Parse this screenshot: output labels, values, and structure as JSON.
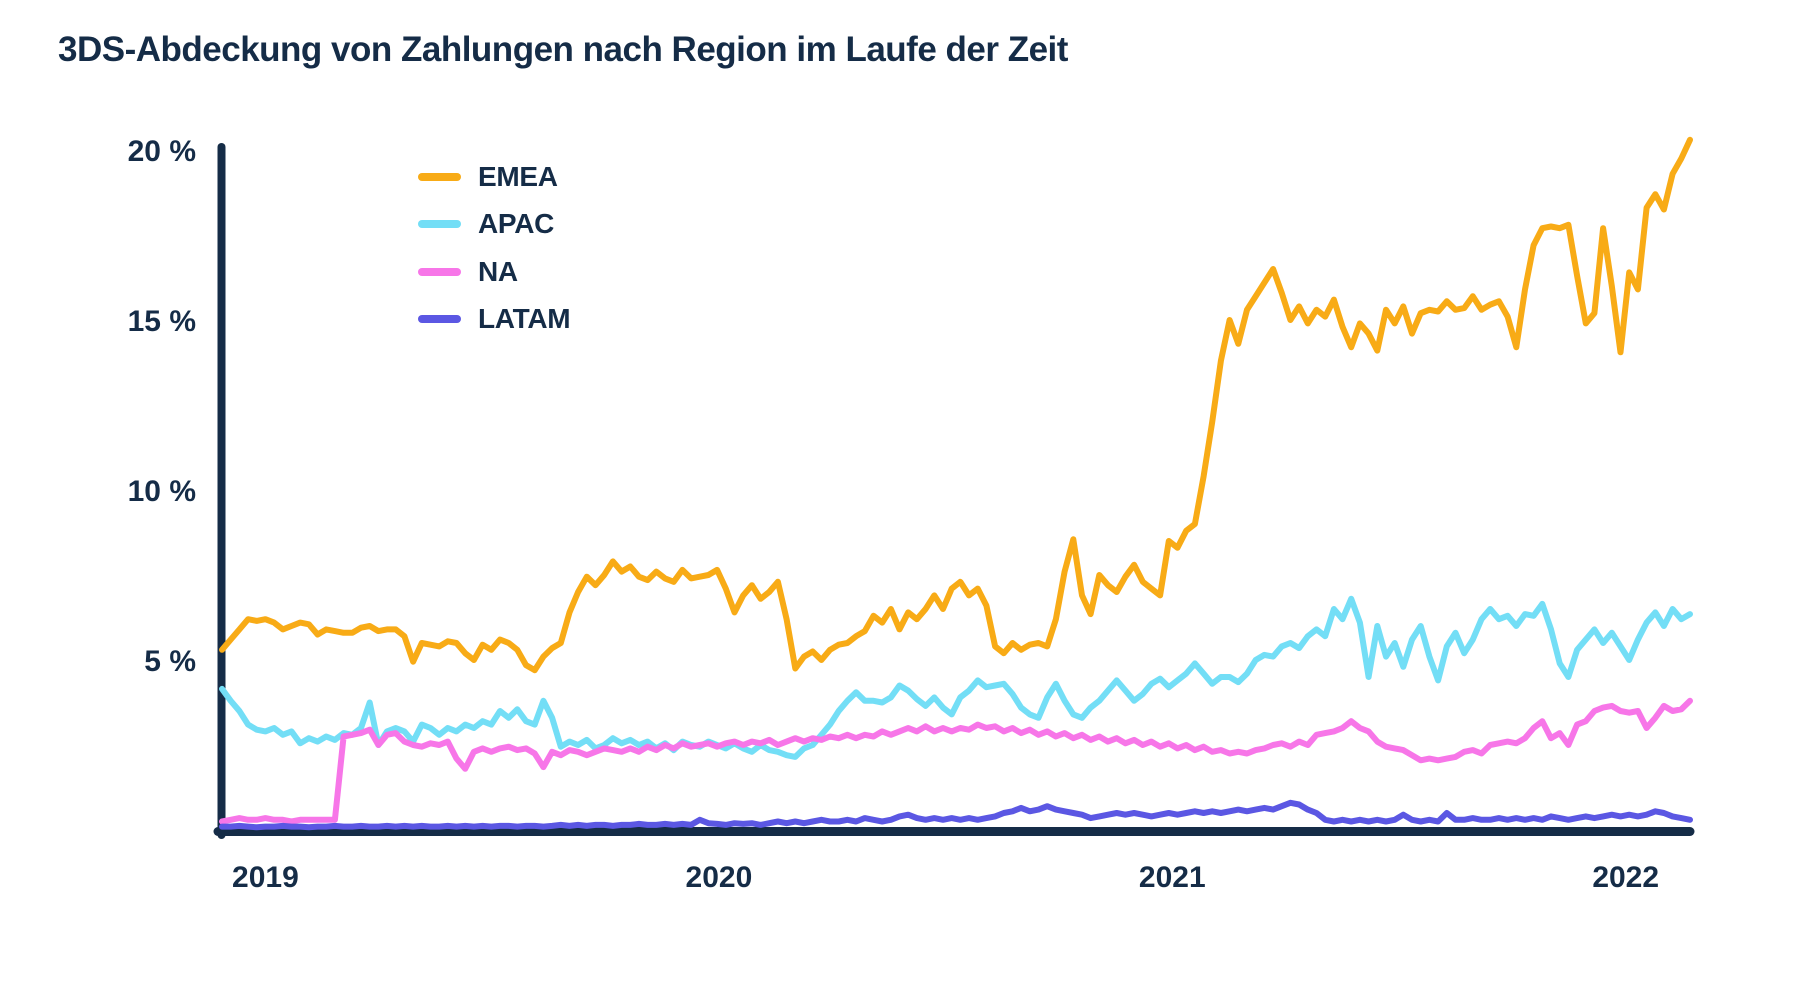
{
  "title": "3DS-Abdeckung von Zahlungen nach Region im Laufe der Zeit",
  "colors": {
    "text_navy": "#152C47",
    "axis": "#152C47",
    "background": "#FFFFFF",
    "emea": "#F8AB16",
    "apac": "#73DEF6",
    "na": "#F776E8",
    "latam": "#5B57E3"
  },
  "chart_data": {
    "type": "line",
    "title": "3DS-Abdeckung von Zahlungen nach Region im Laufe der Zeit",
    "unit": "%",
    "grid": false,
    "legend_position": "top-left-inside",
    "ylim": [
      0,
      20.6
    ],
    "y_ticks": [
      {
        "label": "5 %",
        "value": 5
      },
      {
        "label": "10 %",
        "value": 10
      },
      {
        "label": "15 %",
        "value": 15
      },
      {
        "label": "20 %",
        "value": 20
      }
    ],
    "x_ticks": [
      {
        "label": "2019",
        "index": 5.0
      },
      {
        "label": "2020",
        "index": 57.2
      },
      {
        "label": "2021",
        "index": 109.4
      },
      {
        "label": "2022",
        "index": 161.6
      }
    ],
    "x_note": "weekly data points, late 2018 through early 2022",
    "series": [
      {
        "name": "EMEA",
        "color": "#F8AB16",
        "values": [
          5.3,
          5.6,
          5.9,
          6.2,
          6.15,
          6.2,
          6.1,
          5.9,
          6.0,
          6.1,
          6.05,
          5.75,
          5.9,
          5.85,
          5.8,
          5.8,
          5.95,
          6.0,
          5.85,
          5.9,
          5.9,
          5.7,
          4.95,
          5.5,
          5.45,
          5.4,
          5.55,
          5.5,
          5.2,
          5.0,
          5.45,
          5.3,
          5.6,
          5.5,
          5.3,
          4.85,
          4.7,
          5.1,
          5.35,
          5.5,
          6.4,
          7.0,
          7.45,
          7.2,
          7.5,
          7.9,
          7.6,
          7.75,
          7.45,
          7.35,
          7.6,
          7.4,
          7.3,
          7.65,
          7.4,
          7.45,
          7.5,
          7.65,
          7.1,
          6.4,
          6.9,
          7.2,
          6.8,
          7.0,
          7.3,
          6.2,
          4.75,
          5.1,
          5.25,
          5.0,
          5.3,
          5.45,
          5.5,
          5.7,
          5.85,
          6.3,
          6.1,
          6.5,
          5.9,
          6.4,
          6.2,
          6.5,
          6.9,
          6.5,
          7.1,
          7.3,
          6.9,
          7.1,
          6.6,
          5.4,
          5.2,
          5.5,
          5.3,
          5.45,
          5.5,
          5.4,
          6.2,
          7.6,
          8.55,
          6.9,
          6.35,
          7.5,
          7.2,
          7.0,
          7.45,
          7.8,
          7.3,
          7.1,
          6.9,
          8.5,
          8.3,
          8.8,
          9.0,
          10.4,
          12.0,
          13.8,
          15.0,
          14.3,
          15.3,
          15.7,
          16.1,
          16.5,
          15.8,
          15.0,
          15.4,
          14.9,
          15.3,
          15.1,
          15.6,
          14.8,
          14.2,
          14.9,
          14.6,
          14.1,
          15.3,
          14.9,
          15.4,
          14.6,
          15.2,
          15.3,
          15.25,
          15.55,
          15.3,
          15.35,
          15.7,
          15.3,
          15.45,
          15.55,
          15.1,
          14.2,
          15.9,
          17.2,
          17.7,
          17.75,
          17.7,
          17.8,
          16.3,
          14.9,
          15.2,
          17.7,
          16.0,
          14.05,
          16.4,
          15.9,
          18.3,
          18.7,
          18.25,
          19.3,
          19.75,
          20.3
        ]
      },
      {
        "name": "APAC",
        "color": "#73DEF6",
        "values": [
          4.15,
          3.8,
          3.5,
          3.1,
          2.95,
          2.9,
          3.0,
          2.8,
          2.9,
          2.55,
          2.7,
          2.6,
          2.75,
          2.65,
          2.85,
          2.8,
          3.0,
          3.75,
          2.5,
          2.9,
          3.0,
          2.9,
          2.6,
          3.1,
          3.0,
          2.8,
          3.0,
          2.9,
          3.1,
          3.0,
          3.2,
          3.1,
          3.5,
          3.3,
          3.55,
          3.2,
          3.1,
          3.8,
          3.3,
          2.45,
          2.6,
          2.5,
          2.65,
          2.4,
          2.5,
          2.7,
          2.55,
          2.65,
          2.5,
          2.6,
          2.4,
          2.55,
          2.35,
          2.6,
          2.5,
          2.45,
          2.6,
          2.5,
          2.4,
          2.55,
          2.4,
          2.3,
          2.5,
          2.35,
          2.3,
          2.2,
          2.15,
          2.4,
          2.5,
          2.8,
          3.1,
          3.5,
          3.8,
          4.05,
          3.8,
          3.8,
          3.75,
          3.9,
          4.25,
          4.1,
          3.85,
          3.65,
          3.9,
          3.6,
          3.4,
          3.9,
          4.1,
          4.4,
          4.2,
          4.25,
          4.3,
          4.0,
          3.6,
          3.4,
          3.3,
          3.9,
          4.3,
          3.8,
          3.4,
          3.3,
          3.6,
          3.8,
          4.1,
          4.4,
          4.1,
          3.8,
          4.0,
          4.3,
          4.45,
          4.2,
          4.4,
          4.6,
          4.9,
          4.6,
          4.3,
          4.5,
          4.5,
          4.35,
          4.6,
          5.0,
          5.15,
          5.1,
          5.4,
          5.5,
          5.35,
          5.7,
          5.9,
          5.7,
          6.5,
          6.2,
          6.8,
          6.1,
          4.5,
          6.0,
          5.1,
          5.5,
          4.8,
          5.6,
          6.0,
          5.1,
          4.4,
          5.4,
          5.8,
          5.2,
          5.6,
          6.2,
          6.5,
          6.2,
          6.3,
          6.0,
          6.35,
          6.3,
          6.65,
          5.9,
          4.9,
          4.5,
          5.3,
          5.6,
          5.9,
          5.5,
          5.8,
          5.4,
          5.0,
          5.6,
          6.1,
          6.4,
          6.0,
          6.5,
          6.2,
          6.35
        ]
      },
      {
        "name": "NA",
        "color": "#F776E8",
        "values": [
          0.25,
          0.3,
          0.35,
          0.3,
          0.3,
          0.35,
          0.3,
          0.3,
          0.25,
          0.3,
          0.3,
          0.3,
          0.3,
          0.3,
          2.75,
          2.8,
          2.85,
          2.95,
          2.5,
          2.8,
          2.85,
          2.6,
          2.5,
          2.45,
          2.55,
          2.5,
          2.6,
          2.1,
          1.8,
          2.3,
          2.4,
          2.3,
          2.4,
          2.45,
          2.35,
          2.4,
          2.25,
          1.85,
          2.3,
          2.2,
          2.35,
          2.3,
          2.2,
          2.3,
          2.4,
          2.35,
          2.3,
          2.4,
          2.3,
          2.45,
          2.35,
          2.5,
          2.4,
          2.55,
          2.45,
          2.5,
          2.55,
          2.45,
          2.55,
          2.6,
          2.5,
          2.6,
          2.55,
          2.65,
          2.5,
          2.6,
          2.7,
          2.6,
          2.7,
          2.65,
          2.75,
          2.7,
          2.8,
          2.7,
          2.8,
          2.75,
          2.9,
          2.8,
          2.9,
          3.0,
          2.9,
          3.05,
          2.9,
          3.0,
          2.9,
          3.0,
          2.95,
          3.1,
          3.0,
          3.05,
          2.9,
          3.0,
          2.85,
          2.95,
          2.8,
          2.9,
          2.75,
          2.85,
          2.7,
          2.8,
          2.65,
          2.75,
          2.6,
          2.7,
          2.55,
          2.65,
          2.5,
          2.6,
          2.45,
          2.55,
          2.4,
          2.5,
          2.35,
          2.45,
          2.3,
          2.35,
          2.25,
          2.3,
          2.25,
          2.35,
          2.4,
          2.5,
          2.55,
          2.45,
          2.6,
          2.5,
          2.8,
          2.85,
          2.9,
          3.0,
          3.2,
          3.0,
          2.9,
          2.6,
          2.45,
          2.4,
          2.35,
          2.2,
          2.05,
          2.1,
          2.05,
          2.1,
          2.15,
          2.3,
          2.35,
          2.25,
          2.5,
          2.55,
          2.6,
          2.55,
          2.7,
          3.0,
          3.2,
          2.7,
          2.85,
          2.5,
          3.1,
          3.2,
          3.5,
          3.6,
          3.65,
          3.5,
          3.45,
          3.5,
          3.0,
          3.3,
          3.65,
          3.5,
          3.55,
          3.8
        ]
      },
      {
        "name": "LATAM",
        "color": "#5B57E3",
        "values": [
          0.1,
          0.1,
          0.12,
          0.1,
          0.08,
          0.1,
          0.1,
          0.12,
          0.1,
          0.1,
          0.08,
          0.1,
          0.1,
          0.12,
          0.1,
          0.1,
          0.12,
          0.1,
          0.1,
          0.12,
          0.1,
          0.12,
          0.1,
          0.12,
          0.1,
          0.1,
          0.12,
          0.1,
          0.12,
          0.1,
          0.12,
          0.1,
          0.12,
          0.12,
          0.1,
          0.12,
          0.12,
          0.1,
          0.12,
          0.15,
          0.12,
          0.15,
          0.12,
          0.15,
          0.15,
          0.12,
          0.15,
          0.15,
          0.18,
          0.15,
          0.15,
          0.18,
          0.15,
          0.18,
          0.15,
          0.3,
          0.2,
          0.18,
          0.15,
          0.2,
          0.18,
          0.2,
          0.15,
          0.2,
          0.25,
          0.2,
          0.25,
          0.2,
          0.25,
          0.3,
          0.25,
          0.25,
          0.3,
          0.25,
          0.35,
          0.3,
          0.25,
          0.3,
          0.4,
          0.45,
          0.35,
          0.3,
          0.35,
          0.3,
          0.35,
          0.3,
          0.35,
          0.3,
          0.35,
          0.4,
          0.5,
          0.55,
          0.65,
          0.55,
          0.6,
          0.7,
          0.6,
          0.55,
          0.5,
          0.45,
          0.35,
          0.4,
          0.45,
          0.5,
          0.45,
          0.5,
          0.45,
          0.4,
          0.45,
          0.5,
          0.45,
          0.5,
          0.55,
          0.5,
          0.55,
          0.5,
          0.55,
          0.6,
          0.55,
          0.6,
          0.65,
          0.6,
          0.7,
          0.8,
          0.75,
          0.6,
          0.5,
          0.3,
          0.25,
          0.3,
          0.25,
          0.3,
          0.25,
          0.3,
          0.25,
          0.3,
          0.45,
          0.3,
          0.25,
          0.3,
          0.25,
          0.5,
          0.3,
          0.3,
          0.35,
          0.3,
          0.3,
          0.35,
          0.3,
          0.35,
          0.3,
          0.35,
          0.3,
          0.4,
          0.35,
          0.3,
          0.35,
          0.4,
          0.35,
          0.4,
          0.45,
          0.4,
          0.45,
          0.4,
          0.45,
          0.55,
          0.5,
          0.4,
          0.35,
          0.3
        ]
      }
    ]
  }
}
